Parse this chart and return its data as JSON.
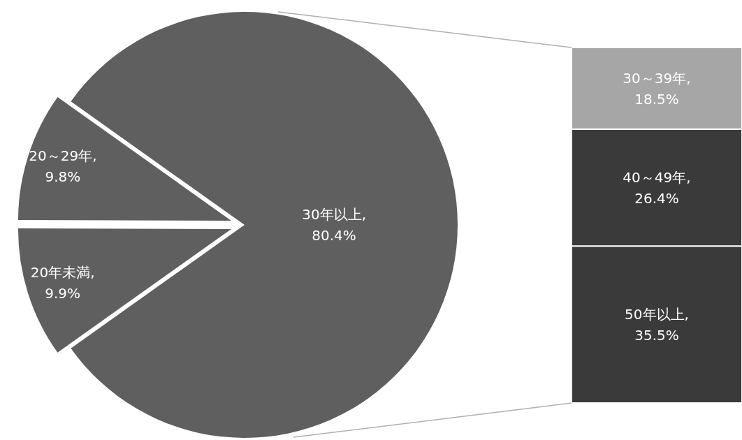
{
  "chart_data": [
    {
      "type": "pie",
      "categories": [
        "30年以上",
        "20～29年",
        "20年未満"
      ],
      "values": [
        80.4,
        9.8,
        9.9
      ],
      "colors": [
        "#5f5f5f",
        "#5f5f5f",
        "#5f5f5f"
      ],
      "value_labels": [
        ", 80.4%",
        ", 9.8%",
        ", 9.9%"
      ],
      "legend": false
    },
    {
      "type": "bar",
      "stacked": true,
      "categories": [
        null
      ],
      "legend": false,
      "series": [
        {
          "name": "50年以上",
          "color": "#3a3a3a",
          "values": [
            35.5
          ],
          "value_labels": [
            ", 35.5%"
          ]
        },
        {
          "name": "40～49年",
          "color": "#3a3a3a",
          "values": [
            26.4
          ],
          "value_labels": [
            ", 26.4%"
          ]
        },
        {
          "name": "30～39年",
          "color": "#a6a6a6",
          "values": [
            18.5
          ],
          "value_labels": [
            ", 18.5%"
          ]
        }
      ]
    }
  ]
}
